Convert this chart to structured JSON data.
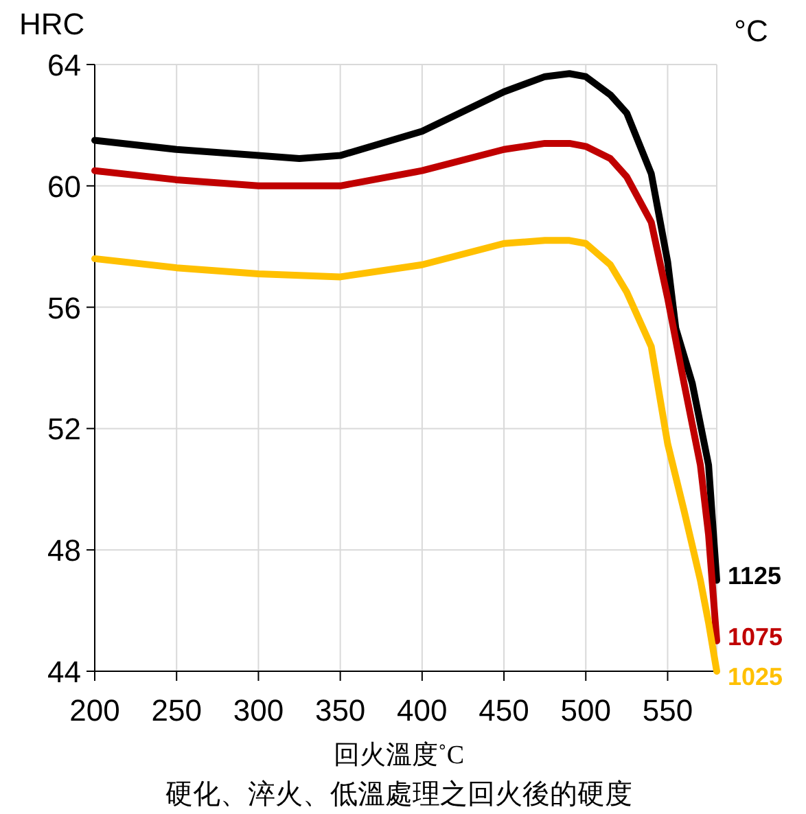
{
  "chart_data": {
    "type": "line",
    "title": "硬化、淬火、低溫處理之回火後的硬度",
    "xlabel": "回火溫度˚C",
    "ylabel": "HRC",
    "legend_title": "°C",
    "xlim": [
      200,
      580
    ],
    "xticks": [
      200,
      250,
      300,
      350,
      400,
      450,
      500,
      550
    ],
    "ylim": [
      44,
      64
    ],
    "yticks": [
      44,
      48,
      52,
      56,
      60,
      64
    ],
    "grid": true,
    "x": [
      200,
      250,
      300,
      325,
      350,
      400,
      450,
      475,
      490,
      500,
      515,
      525,
      540,
      550,
      555,
      565,
      575,
      580
    ],
    "series": [
      {
        "name": "1125",
        "color": "#000000",
        "values": [
          61.5,
          61.2,
          61.0,
          60.9,
          61.0,
          61.8,
          63.1,
          63.6,
          63.7,
          63.6,
          63.0,
          62.4,
          60.4,
          57.5,
          55.3,
          53.5,
          50.8,
          47
        ]
      },
      {
        "name": "1075",
        "color": "#c00000",
        "x": [
          200,
          250,
          300,
          350,
          400,
          450,
          475,
          490,
          500,
          515,
          525,
          540,
          550,
          560,
          570,
          575,
          580
        ],
        "values": [
          60.5,
          60.2,
          60.0,
          60.0,
          60.5,
          61.2,
          61.4,
          61.4,
          61.3,
          60.9,
          60.3,
          58.8,
          56.3,
          53.5,
          50.8,
          48.5,
          45
        ]
      },
      {
        "name": "1025",
        "color": "#ffc000",
        "x": [
          200,
          250,
          300,
          350,
          400,
          450,
          475,
          490,
          500,
          515,
          525,
          540,
          550,
          560,
          570,
          575,
          580
        ],
        "values": [
          57.6,
          57.3,
          57.1,
          57.0,
          57.4,
          58.1,
          58.2,
          58.2,
          58.1,
          57.4,
          56.5,
          54.7,
          51.5,
          49.3,
          47.0,
          45.6,
          44
        ]
      }
    ]
  }
}
